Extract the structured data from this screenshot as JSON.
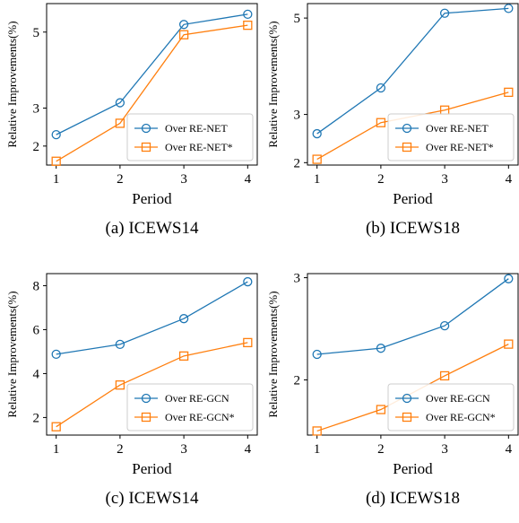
{
  "colors": {
    "series1": "#1f77b4",
    "series2": "#ff7f0e"
  },
  "chart_data": [
    {
      "type": "line",
      "caption": "(a) ICEWS14",
      "xlabel": "Period",
      "ylabel": "Relative Improvements(%)",
      "x": [
        1,
        2,
        3,
        4
      ],
      "xlim": [
        0.85,
        4.15
      ],
      "ylim": [
        1.5,
        5.75
      ],
      "yticks": [
        2,
        3,
        5
      ],
      "grid": false,
      "legend_position": "lower-right",
      "series": [
        {
          "name": "Over RE-NET",
          "marker": "circle",
          "values": [
            2.3,
            3.14,
            5.2,
            5.47
          ]
        },
        {
          "name": "Over RE-NET*",
          "marker": "square",
          "values": [
            1.6,
            2.6,
            4.93,
            5.18
          ]
        }
      ]
    },
    {
      "type": "line",
      "caption": "(b) ICEWS18",
      "xlabel": "Period",
      "ylabel": "Relative Improvements(%)",
      "x": [
        1,
        2,
        3,
        4
      ],
      "xlim": [
        0.85,
        4.15
      ],
      "ylim": [
        1.95,
        5.3
      ],
      "yticks": [
        2,
        3,
        5
      ],
      "grid": false,
      "legend_position": "lower-right",
      "series": [
        {
          "name": "Over RE-NET",
          "marker": "circle",
          "values": [
            2.6,
            3.55,
            5.1,
            5.2
          ]
        },
        {
          "name": "Over RE-NET*",
          "marker": "square",
          "values": [
            2.07,
            2.83,
            3.09,
            3.46
          ]
        }
      ]
    },
    {
      "type": "line",
      "caption": "(c) ICEWS14",
      "xlabel": "Period",
      "ylabel": "Relative Improvements(%)",
      "x": [
        1,
        2,
        3,
        4
      ],
      "xlim": [
        0.85,
        4.15
      ],
      "ylim": [
        1.2,
        8.55
      ],
      "yticks": [
        2,
        4,
        6,
        8
      ],
      "grid": false,
      "legend_position": "lower-right",
      "series": [
        {
          "name": "Over RE-GCN",
          "marker": "circle",
          "values": [
            4.88,
            5.33,
            6.5,
            8.18
          ]
        },
        {
          "name": "Over RE-GCN*",
          "marker": "square",
          "values": [
            1.58,
            3.48,
            4.8,
            5.41
          ]
        }
      ]
    },
    {
      "type": "line",
      "caption": "(d) ICEWS18",
      "xlabel": "Period",
      "ylabel": "Relative Improvements(%)",
      "x": [
        1,
        2,
        3,
        4
      ],
      "xlim": [
        0.85,
        4.15
      ],
      "ylim": [
        1.46,
        3.04
      ],
      "yticks": [
        2,
        3
      ],
      "grid": false,
      "legend_position": "lower-right",
      "series": [
        {
          "name": "Over RE-GCN",
          "marker": "circle",
          "values": [
            2.25,
            2.31,
            2.53,
            2.99
          ]
        },
        {
          "name": "Over RE-GCN*",
          "marker": "square",
          "values": [
            1.5,
            1.71,
            2.04,
            2.35
          ]
        }
      ]
    }
  ]
}
